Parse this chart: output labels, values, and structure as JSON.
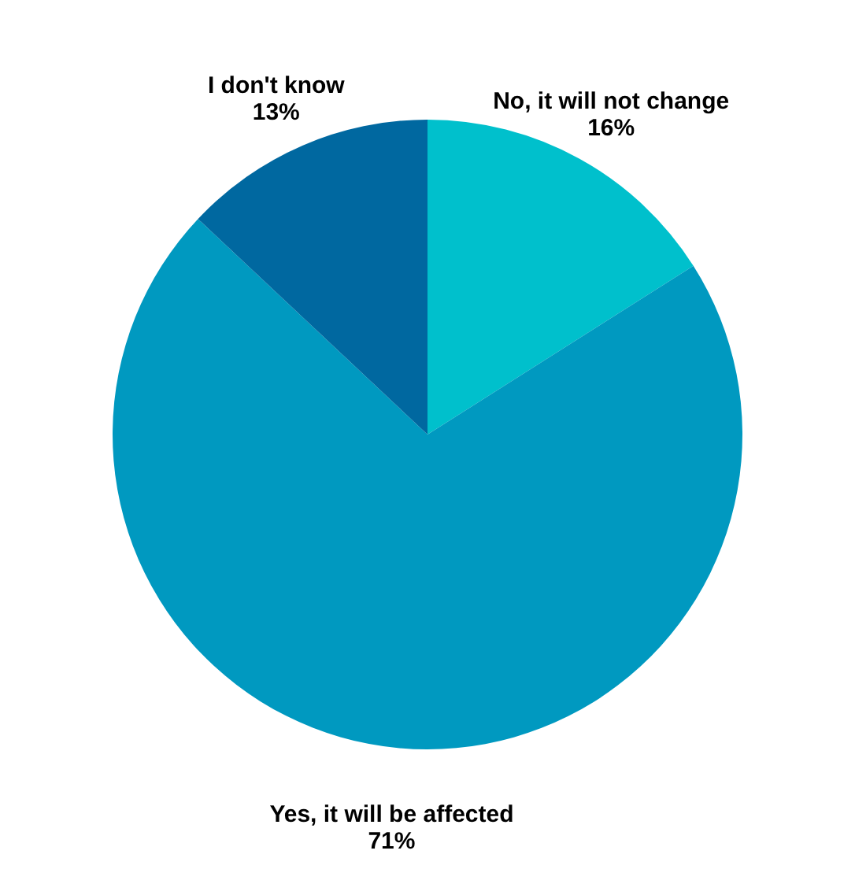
{
  "chart_data": {
    "type": "pie",
    "categories": [
      "No, it will not change",
      "Yes, it will be affected",
      "I don't know"
    ],
    "values": [
      16,
      71,
      13
    ],
    "value_labels": [
      "16%",
      "71%",
      "13%"
    ],
    "colors": [
      "#00c0cc",
      "#0099c0",
      "#0068a0"
    ],
    "legend": false
  }
}
